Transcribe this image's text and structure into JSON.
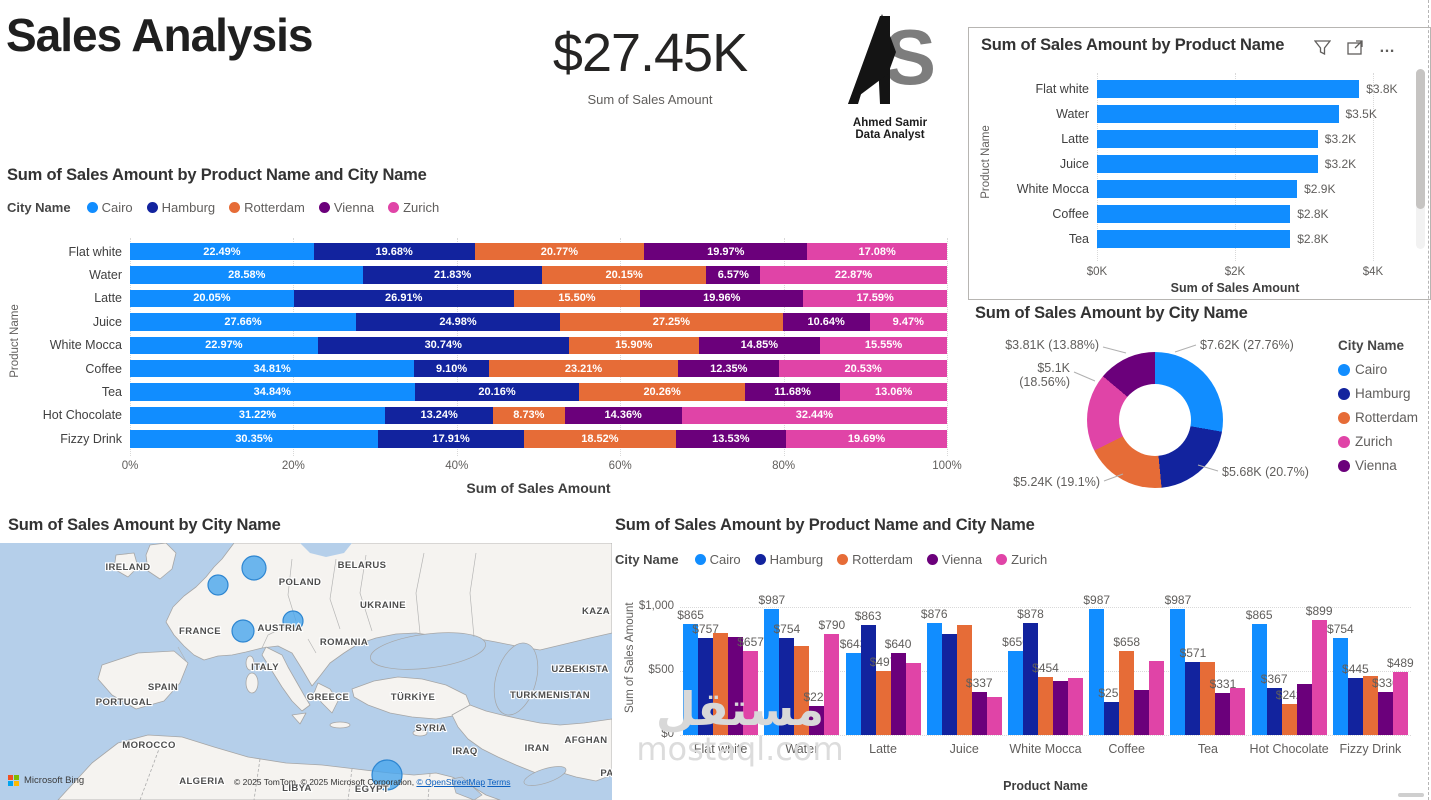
{
  "page": {
    "title": "Sales Analysis",
    "kpi": {
      "value": "$27.45K",
      "caption": "Sum of Sales Amount"
    },
    "logo": {
      "initials": "AS",
      "name": "Ahmed Samir",
      "role": "Data Analyst"
    },
    "watermark": {
      "arabic": "مستقل",
      "latin": "mostaql.com"
    }
  },
  "colors": {
    "cairo": "#118DFF",
    "hamburg": "#12239E",
    "rotterdam": "#E66C37",
    "vienna": "#6B007B",
    "zurich": "#E044A7",
    "bar_blue": "#118DFF",
    "sea": "#B5CFEA",
    "land": "#F5F3F0"
  },
  "icons": {
    "panel_header": [
      "filter-icon",
      "focus-mode-icon",
      "more-options-icon"
    ],
    "more_glyph": "…"
  },
  "chart_data": [
    {
      "id": "bar_by_product",
      "type": "bar",
      "orientation": "horizontal",
      "title": "Sum of Sales Amount by Product Name",
      "categories": [
        "Flat white",
        "Water",
        "Latte",
        "Juice",
        "White Mocca",
        "Coffee",
        "Tea"
      ],
      "values_k": [
        3.8,
        3.5,
        3.2,
        3.2,
        2.9,
        2.8,
        2.8
      ],
      "labels": [
        "$3.8K",
        "$3.5K",
        "$3.2K",
        "$3.2K",
        "$2.9K",
        "$2.8K",
        "$2.8K"
      ],
      "x_ticks": [
        "$0K",
        "$2K",
        "$4K"
      ],
      "xlim_k": [
        0,
        4
      ],
      "xlabel": "Sum of Sales Amount",
      "ylabel": "Product Name",
      "bar_color": "#118DFF",
      "grid": true,
      "scrollbar": true
    },
    {
      "id": "stacked_by_product_city",
      "type": "bar",
      "subtype": "stacked-100",
      "title": "Sum of Sales Amount by Product Name and City Name",
      "legend_title": "City Name",
      "legend_position": "top",
      "categories": [
        "Flat white",
        "Water",
        "Latte",
        "Juice",
        "White Mocca",
        "Coffee",
        "Tea",
        "Hot Chocolate",
        "Fizzy Drink"
      ],
      "series": [
        {
          "name": "Cairo",
          "color": "#118DFF",
          "values_pct": [
            22.49,
            28.58,
            20.05,
            27.66,
            22.97,
            34.81,
            34.84,
            31.22,
            30.35
          ],
          "labels": [
            "22.49%",
            "28.58%",
            "20.05%",
            "27.66%",
            "22.97%",
            "34.81%",
            "34.84%",
            "31.22%",
            "30.35%"
          ]
        },
        {
          "name": "Hamburg",
          "color": "#12239E",
          "values_pct": [
            19.68,
            21.83,
            26.91,
            24.98,
            30.74,
            9.1,
            20.16,
            13.24,
            17.91
          ],
          "labels": [
            "19.68%",
            "21.83%",
            "26.91%",
            "24.98%",
            "30.74%",
            "9.10%",
            "20.16%",
            "13.24%",
            "17.91%"
          ]
        },
        {
          "name": "Rotterdam",
          "color": "#E66C37",
          "values_pct": [
            20.77,
            20.15,
            15.5,
            27.25,
            15.9,
            23.21,
            20.26,
            8.73,
            18.52
          ],
          "labels": [
            "20.77%",
            "20.15%",
            "15.50%",
            "27.25%",
            "15.90%",
            "23.21%",
            "20.26%",
            "8.73%",
            "18.52%"
          ]
        },
        {
          "name": "Vienna",
          "color": "#6B007B",
          "values_pct": [
            19.97,
            6.57,
            19.96,
            10.64,
            14.85,
            12.35,
            11.68,
            14.36,
            13.53
          ],
          "labels": [
            "19.97%",
            "6.57%",
            "19.96%",
            "10.64%",
            "14.85%",
            "12.35%",
            "11.68%",
            "14.36%",
            "13.53%"
          ]
        },
        {
          "name": "Zurich",
          "color": "#E044A7",
          "values_pct": [
            17.08,
            22.87,
            17.59,
            9.47,
            15.55,
            20.53,
            13.06,
            32.44,
            19.69
          ],
          "labels": [
            "17.08%",
            "22.87%",
            "17.59%",
            "9.47%",
            "15.55%",
            "20.53%",
            "13.06%",
            "32.44%",
            "19.69%"
          ]
        }
      ],
      "x_ticks": [
        "0%",
        "20%",
        "40%",
        "60%",
        "80%",
        "100%"
      ],
      "xlabel": "Sum of Sales Amount",
      "ylabel": "Product Name",
      "grid": true
    },
    {
      "id": "donut_by_city",
      "type": "pie",
      "subtype": "donut",
      "title": "Sum of Sales Amount by City Name",
      "legend_title": "City Name",
      "legend_position": "right",
      "slices": [
        {
          "name": "Cairo",
          "color": "#118DFF",
          "pct": 27.76,
          "value_label": "$7.62K (27.76%)"
        },
        {
          "name": "Hamburg",
          "color": "#12239E",
          "pct": 20.7,
          "value_label": "$5.68K (20.7%)"
        },
        {
          "name": "Rotterdam",
          "color": "#E66C37",
          "pct": 19.1,
          "value_label": "$5.24K (19.1%)"
        },
        {
          "name": "Zurich",
          "color": "#E044A7",
          "pct": 18.56,
          "value_label": "$5.1K (18.56%)"
        },
        {
          "name": "Vienna",
          "color": "#6B007B",
          "pct": 13.88,
          "value_label": "$3.81K (13.88%)"
        }
      ]
    },
    {
      "id": "map_by_city",
      "type": "map",
      "title": "Sum of Sales Amount by City Name",
      "provider": "Microsoft Bing",
      "bubbles": [
        {
          "city": "Hamburg"
        },
        {
          "city": "Rotterdam"
        },
        {
          "city": "Zurich"
        },
        {
          "city": "Vienna"
        },
        {
          "city": "Cairo"
        }
      ],
      "country_labels": [
        "IRELAND",
        "BELARUS",
        "POLAND",
        "UKRAINE",
        "KAZA",
        "FRANCE",
        "AUSTRIA",
        "ROMANIA",
        "ITALY",
        "SPAIN",
        "PORTUGAL",
        "GREECE",
        "TÜRKİYE",
        "UZBEKISTA",
        "TURKMENISTAN",
        "SYRIA",
        "IRAQ",
        "IRAN",
        "AFGHAN",
        "MOROCCO",
        "ALGERIA",
        "LIBYA",
        "EGYPT",
        "PA"
      ],
      "attribution": [
        {
          "text": "© 2025 TomTom, © 2025 Microsoft Corporation, ",
          "link": false
        },
        {
          "text": "© OpenStreetMap",
          "link": true
        },
        {
          "text": " ",
          "link": false
        },
        {
          "text": "Terms",
          "link": true
        }
      ]
    },
    {
      "id": "grouped_by_product_city",
      "type": "bar",
      "subtype": "grouped",
      "title": "Sum of Sales Amount by Product Name and City Name",
      "legend_title": "City Name",
      "legend_position": "top",
      "categories": [
        "Flat white",
        "Water",
        "Latte",
        "Juice",
        "White Mocca",
        "Coffee",
        "Tea",
        "Hot Chocolate",
        "Fizzy Drink"
      ],
      "series": [
        {
          "name": "Cairo",
          "color": "#118DFF",
          "values": [
            865,
            987,
            643,
            876,
            656,
            987,
            987,
            865,
            754
          ],
          "labels": [
            "$865",
            "$987",
            "$643",
            "$876",
            "$656",
            "$987",
            "$987",
            "$865",
            "$754"
          ]
        },
        {
          "name": "Hamburg",
          "color": "#12239E",
          "values": [
            757,
            754,
            863,
            791,
            878,
            258,
            571,
            367,
            445
          ],
          "labels": [
            "$757",
            "$754",
            "$863",
            "",
            "$878",
            "$258",
            "$571",
            "$367",
            "$445"
          ]
        },
        {
          "name": "Rotterdam",
          "color": "#E66C37",
          "values": [
            799,
            696,
            497,
            863,
            454,
            658,
            574,
            242,
            460
          ],
          "labels": [
            "",
            "",
            "$497",
            "",
            "$454",
            "$658",
            "",
            "$242",
            ""
          ]
        },
        {
          "name": "Vienna",
          "color": "#6B007B",
          "values": [
            768,
            227,
            640,
            337,
            424,
            350,
            331,
            398,
            336
          ],
          "labels": [
            "",
            "$227",
            "$640",
            "$337",
            "",
            "",
            "$331",
            "",
            "$336"
          ]
        },
        {
          "name": "Zurich",
          "color": "#E044A7",
          "values": [
            657,
            790,
            564,
            300,
            444,
            582,
            370,
            899,
            489
          ],
          "labels": [
            "$657",
            "$790",
            "",
            "",
            "",
            "",
            "",
            "$899",
            "$489"
          ]
        }
      ],
      "y_ticks": [
        "$1,000",
        "$500",
        "$0"
      ],
      "ylim": [
        0,
        1000
      ],
      "xlabel": "Product Name",
      "ylabel": "Sum of Sales Amount",
      "grid": true
    }
  ]
}
